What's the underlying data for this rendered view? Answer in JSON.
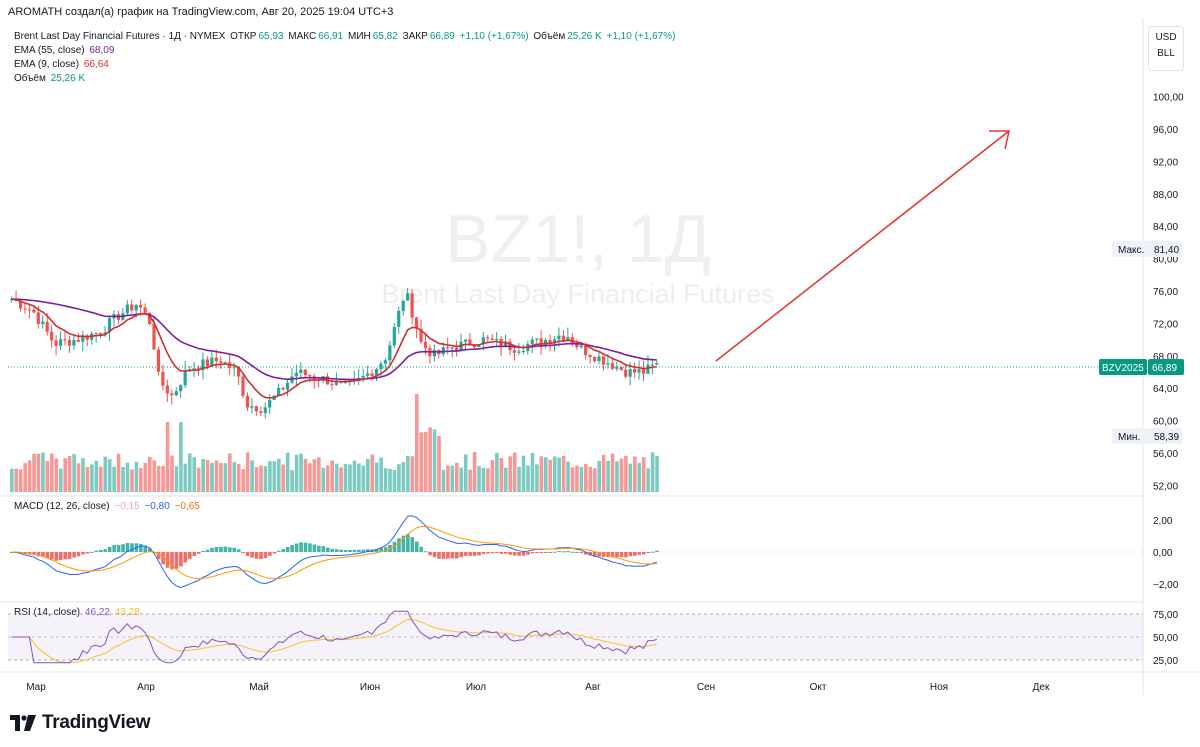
{
  "header": {
    "attribution": "AROMATH создал(а) график на TradingView.com, Авг 20, 2025 19:04 UTC+3"
  },
  "main_legend": {
    "symbol": "Brent Last Day Financial Futures · 1Д · NYMEX",
    "open_label": "ОТКР",
    "open": "65,93",
    "high_label": "МАКС",
    "high": "66,91",
    "low_label": "МИН",
    "low": "65,82",
    "close_label": "ЗАКР",
    "close": "66,89",
    "change": "+1,10 (+1,67%)",
    "volume_label": "Объём",
    "volume": "25,26 K",
    "volume_change": "+1,10 (+1,67%)"
  },
  "indicators": {
    "ema55": {
      "label": "EMA (55, close)",
      "value": "68,09",
      "color": "#7b1fa2"
    },
    "ema9": {
      "label": "EMA (9, close)",
      "value": "66,64",
      "color": "#d32f2f"
    },
    "volume": {
      "label": "Объём",
      "value": "25,26 K"
    }
  },
  "watermark": {
    "ticker": "BZ1!, 1Д",
    "name": "Brent Last Day Financial Futures"
  },
  "currency": {
    "code": "USD",
    "unit": "BLL"
  },
  "price_axis": {
    "ticks": [
      "100,00",
      "96,00",
      "92,00",
      "88,00",
      "84,00",
      "80,00",
      "76,00",
      "72,00",
      "68,00",
      "64,00",
      "60,00",
      "56,00",
      "52,00"
    ],
    "max_label": "Макс.",
    "max_value": "81,40",
    "min_label": "Мин.",
    "min_value": "58,39",
    "last_symbol": "BZV2025",
    "last_value": "66,89"
  },
  "macd": {
    "label": "MACD (12, 26, close)",
    "hist": "−0,15",
    "macd": "−0,80",
    "signal": "−0,65",
    "ticks": [
      "2,00",
      "0,00",
      "−2,00"
    ]
  },
  "rsi": {
    "label": "RSI (14, close)",
    "value": "46,22",
    "ma": "43,28",
    "ticks": [
      "75,00",
      "50,00",
      "25,00"
    ]
  },
  "time_axis": {
    "months": [
      "Мар",
      "Апр",
      "Май",
      "Июн",
      "Июл",
      "Авг",
      "Сен",
      "Окт",
      "Ноя",
      "Дек"
    ]
  },
  "logo": {
    "name": "TradingView"
  },
  "colors": {
    "up": "#26a69a",
    "down": "#ef5350",
    "ema55": "#7b1fa2",
    "ema9": "#d32f2f",
    "arrow": "#e53935",
    "last_price": "#089981"
  }
}
